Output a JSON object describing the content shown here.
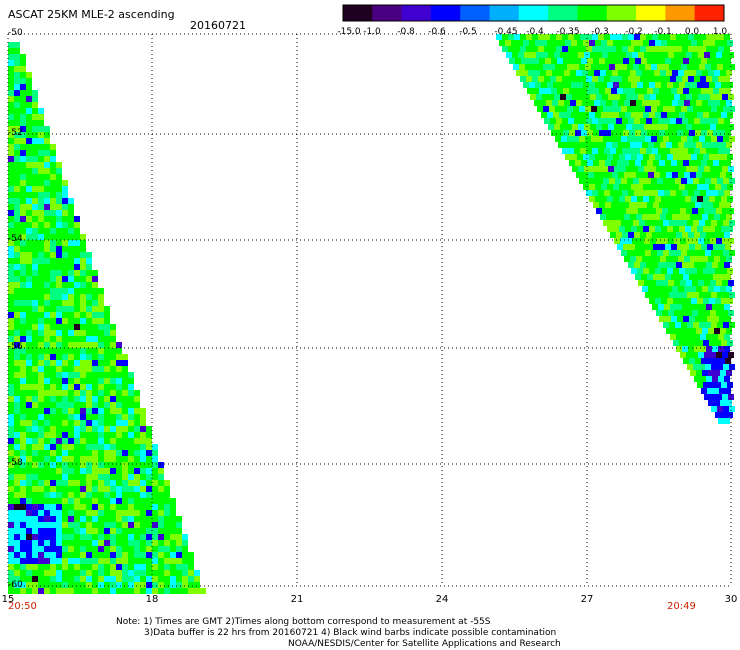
{
  "header": {
    "title": "ASCAT 25KM MLE-2 ascending",
    "date": "20160721"
  },
  "colorbar": {
    "tick_labels": [
      "-15.0",
      "-1.0",
      "-0.8",
      "-0.6",
      "-0.5",
      "-0.45",
      "-0.4",
      "-0.35",
      "-0.3",
      "-0.2",
      "-0.1",
      "0.0",
      "1.0"
    ],
    "colors": [
      "#200020",
      "#4b0082",
      "#4000d0",
      "#0000ff",
      "#0060ff",
      "#00b0ff",
      "#00ffff",
      "#00ff80",
      "#00ff00",
      "#80ff00",
      "#ffff00",
      "#ff9900",
      "#ff2200"
    ]
  },
  "map": {
    "latitude_labels": [
      "-50",
      "-52",
      "-54",
      "-56",
      "-58",
      "-60"
    ],
    "longitude_labels": [
      "15",
      "18",
      "21",
      "24",
      "27",
      "30"
    ],
    "start_time": "20:50",
    "end_time": "20:49",
    "grid": "dotted",
    "swath_colors": [
      "#00ff00",
      "#00ff80",
      "#80ff00",
      "#00ffff",
      "#0000ff",
      "#4000d0",
      "#200020"
    ]
  },
  "notes": {
    "line1": "Note: 1) Times are GMT 2)Times along bottom correspond to measurement at -55S",
    "line2": "3)Data buffer is 22 hrs from 20160721 4) Black wind barbs indicate possible contamination",
    "line3": "NOAA/NESDIS/Center for Satellite Applications and Research"
  }
}
